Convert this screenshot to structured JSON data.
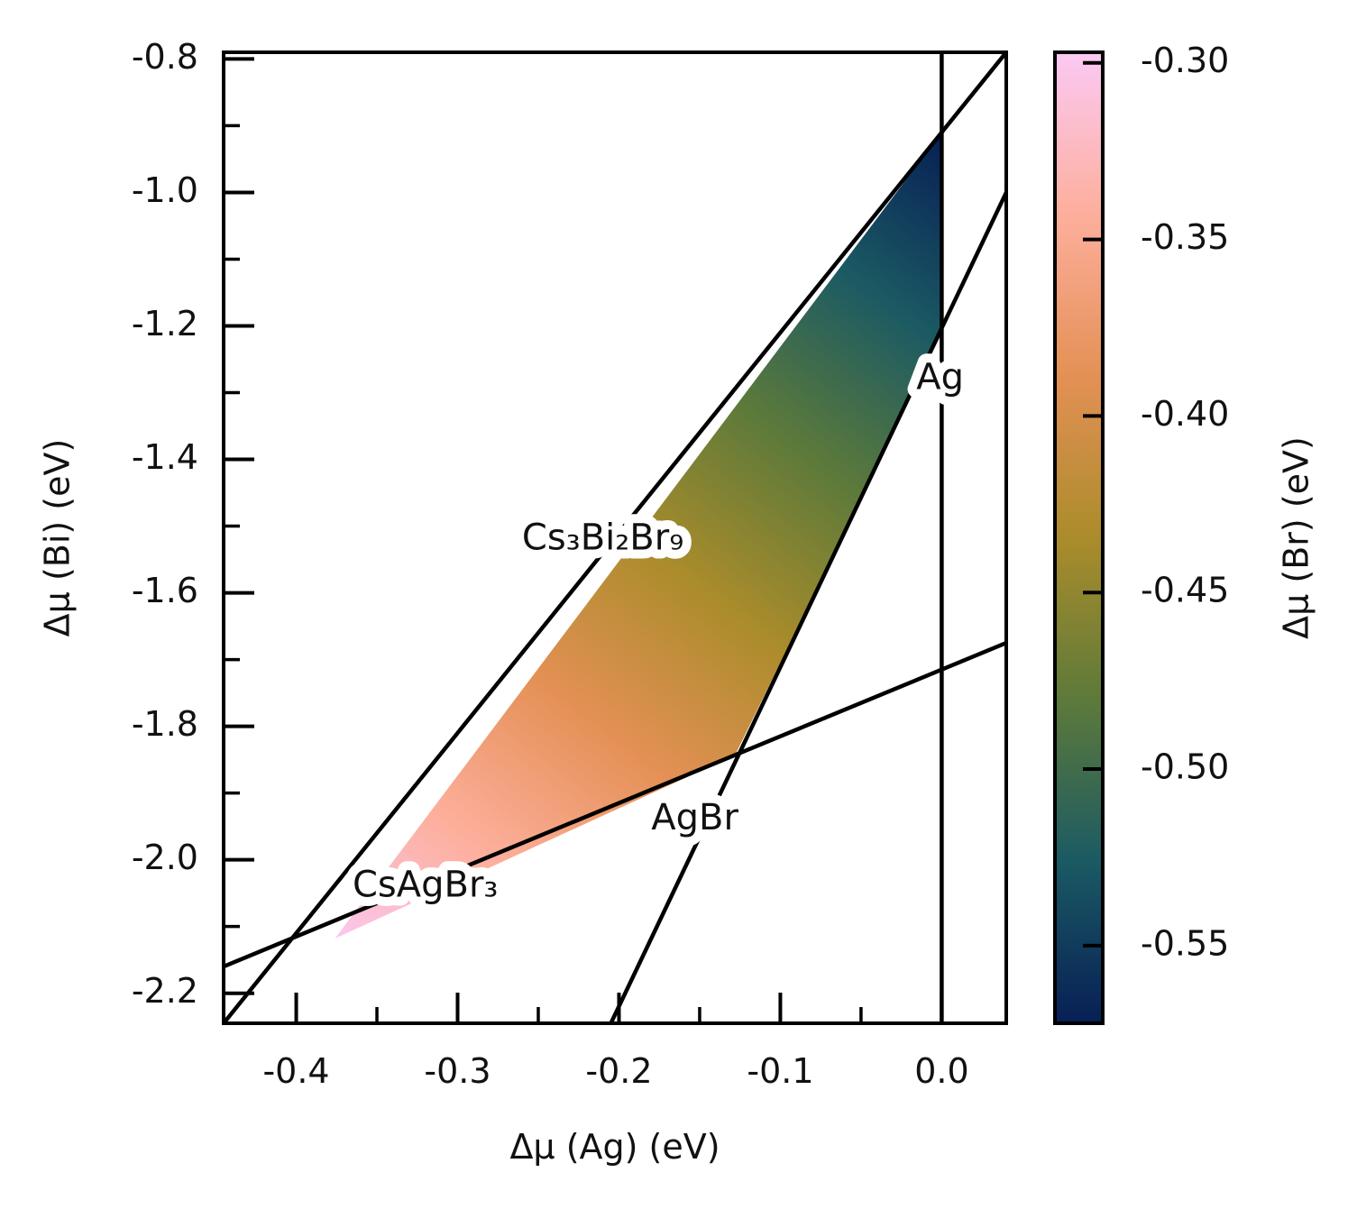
{
  "chart_data": {
    "type": "area",
    "xlabel": "Δμ (Ag) (eV)",
    "ylabel": "Δμ (Bi) (eV)",
    "colorbar_label": "Δμ (Br) (eV)",
    "xlim": [
      -0.445,
      0.04
    ],
    "ylim": [
      -2.245,
      -0.79
    ],
    "clim": [
      -0.572,
      -0.297
    ],
    "xticks": [
      -0.4,
      -0.3,
      -0.2,
      -0.1,
      0.0
    ],
    "xtick_labels": [
      "-0.4",
      "-0.3",
      "-0.2",
      "-0.1",
      "0.0"
    ],
    "yticks": [
      -2.2,
      -2.0,
      -1.8,
      -1.6,
      -1.4,
      -1.2,
      -1.0,
      -0.8
    ],
    "ytick_labels": [
      "-2.2",
      "-2.0",
      "-1.8",
      "-1.6",
      "-1.4",
      "-1.2",
      "-1.0",
      "-0.8"
    ],
    "cbar_ticks": [
      -0.55,
      -0.5,
      -0.45,
      -0.4,
      -0.35,
      -0.3
    ],
    "cbar_tick_labels": [
      "-0.55",
      "-0.50",
      "-0.45",
      "-0.40",
      "-0.35",
      "-0.30"
    ],
    "colormap": [
      "#071f55",
      "#1b5a63",
      "#5d7a3a",
      "#ab8c2b",
      "#e49055",
      "#fdaf9c",
      "#fbc9f4"
    ],
    "grid": false,
    "stable_region": {
      "vertices": [
        {
          "x": -0.376,
          "y": -2.118
        },
        {
          "x": -0.128,
          "y": -1.843
        },
        {
          "x": 0.0,
          "y": -1.211
        },
        {
          "x": 0.0,
          "y": -0.91
        }
      ],
      "dmu_br_at_vertices": [
        -0.3,
        -0.4,
        -0.5,
        -0.572
      ]
    },
    "boundary_lines": [
      {
        "name": "Cs3Bi2Br9",
        "points": [
          {
            "x": -0.445,
            "y": -2.245
          },
          {
            "x": 0.04,
            "y": -0.79
          }
        ]
      },
      {
        "name": "CsAgBr3",
        "points": [
          {
            "x": -0.445,
            "y": -2.16
          },
          {
            "x": 0.04,
            "y": -1.675
          }
        ]
      },
      {
        "name": "AgBr",
        "points": [
          {
            "x": -0.205,
            "y": -2.245
          },
          {
            "x": 0.04,
            "y": -1.0
          }
        ]
      },
      {
        "name": "Ag",
        "points": [
          {
            "x": 0.0,
            "y": -2.245
          },
          {
            "x": 0.0,
            "y": -0.79
          }
        ]
      }
    ],
    "annotations": [
      {
        "text": "Ag",
        "x": -0.001,
        "y": -1.28
      },
      {
        "text": "Cs₃Bi₂Br₉",
        "x": -0.21,
        "y": -1.52
      },
      {
        "text": "AgBr",
        "x": -0.153,
        "y": -1.94
      },
      {
        "text": "CsAgBr₃",
        "x": -0.32,
        "y": -2.04
      }
    ]
  }
}
